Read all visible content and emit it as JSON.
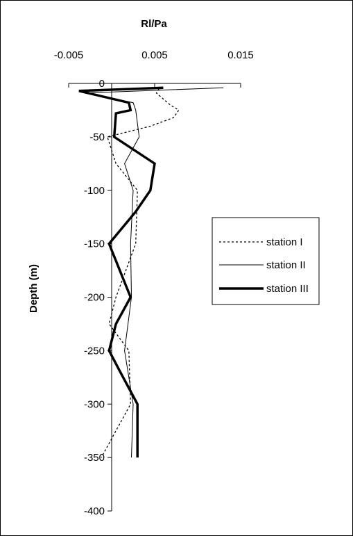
{
  "chart_data": {
    "type": "line",
    "title": "Rl/Pa",
    "xlabel": "Rl/Pa",
    "ylabel": "Depth (m)",
    "xlim": [
      -0.005,
      0.015
    ],
    "ylim": [
      -400,
      0
    ],
    "x_ticks": [
      "-0.005",
      "0.005",
      "0.015"
    ],
    "y_ticks": [
      "0",
      "-50",
      "-100",
      "-150",
      "-200",
      "-250",
      "-300",
      "-350",
      "-400"
    ],
    "x_tick_values": [
      -0.005,
      0.005,
      0.015
    ],
    "y_tick_values": [
      0,
      -50,
      -100,
      -150,
      -200,
      -250,
      -300,
      -350,
      -400
    ],
    "x_axis_position": "top",
    "grid": false,
    "legend_position": "right",
    "series": [
      {
        "name": "station I",
        "style": "dotted",
        "points": [
          [
            0.0055,
            -5
          ],
          [
            0.0052,
            -9
          ],
          [
            0.0068,
            -20
          ],
          [
            0.0078,
            -25
          ],
          [
            0.0072,
            -32
          ],
          [
            0.0045,
            -40
          ],
          [
            -0.0005,
            -50
          ],
          [
            0.0005,
            -75
          ],
          [
            0.003,
            -100
          ],
          [
            0.0028,
            -150
          ],
          [
            0.0005,
            -200
          ],
          [
            -0.0003,
            -225
          ],
          [
            0.002,
            -250
          ],
          [
            0.0022,
            -300
          ],
          [
            0.0005,
            -325
          ],
          [
            -0.0012,
            -350
          ]
        ]
      },
      {
        "name": "station II",
        "style": "thin",
        "points": [
          [
            0.013,
            -4
          ],
          [
            -0.003,
            -9
          ],
          [
            0.0025,
            -18
          ],
          [
            0.0028,
            -25
          ],
          [
            0.0032,
            -50
          ],
          [
            0.0015,
            -75
          ],
          [
            0.0025,
            -100
          ],
          [
            0.0022,
            -150
          ],
          [
            0.0023,
            -200
          ],
          [
            0.0015,
            -250
          ],
          [
            0.0025,
            -300
          ],
          [
            0.0023,
            -350
          ]
        ]
      },
      {
        "name": "station III",
        "style": "thick",
        "points": [
          [
            0.006,
            -4
          ],
          [
            -0.0038,
            -7
          ],
          [
            0.002,
            -18
          ],
          [
            0.0022,
            -25
          ],
          [
            0.0005,
            -28
          ],
          [
            0.0003,
            -50
          ],
          [
            0.005,
            -75
          ],
          [
            0.0045,
            -100
          ],
          [
            0.0028,
            -120
          ],
          [
            -0.0003,
            -150
          ],
          [
            0.0022,
            -200
          ],
          [
            0.0005,
            -225
          ],
          [
            -0.0003,
            -250
          ],
          [
            0.001,
            -270
          ],
          [
            0.003,
            -300
          ],
          [
            0.003,
            -350
          ]
        ]
      }
    ]
  }
}
